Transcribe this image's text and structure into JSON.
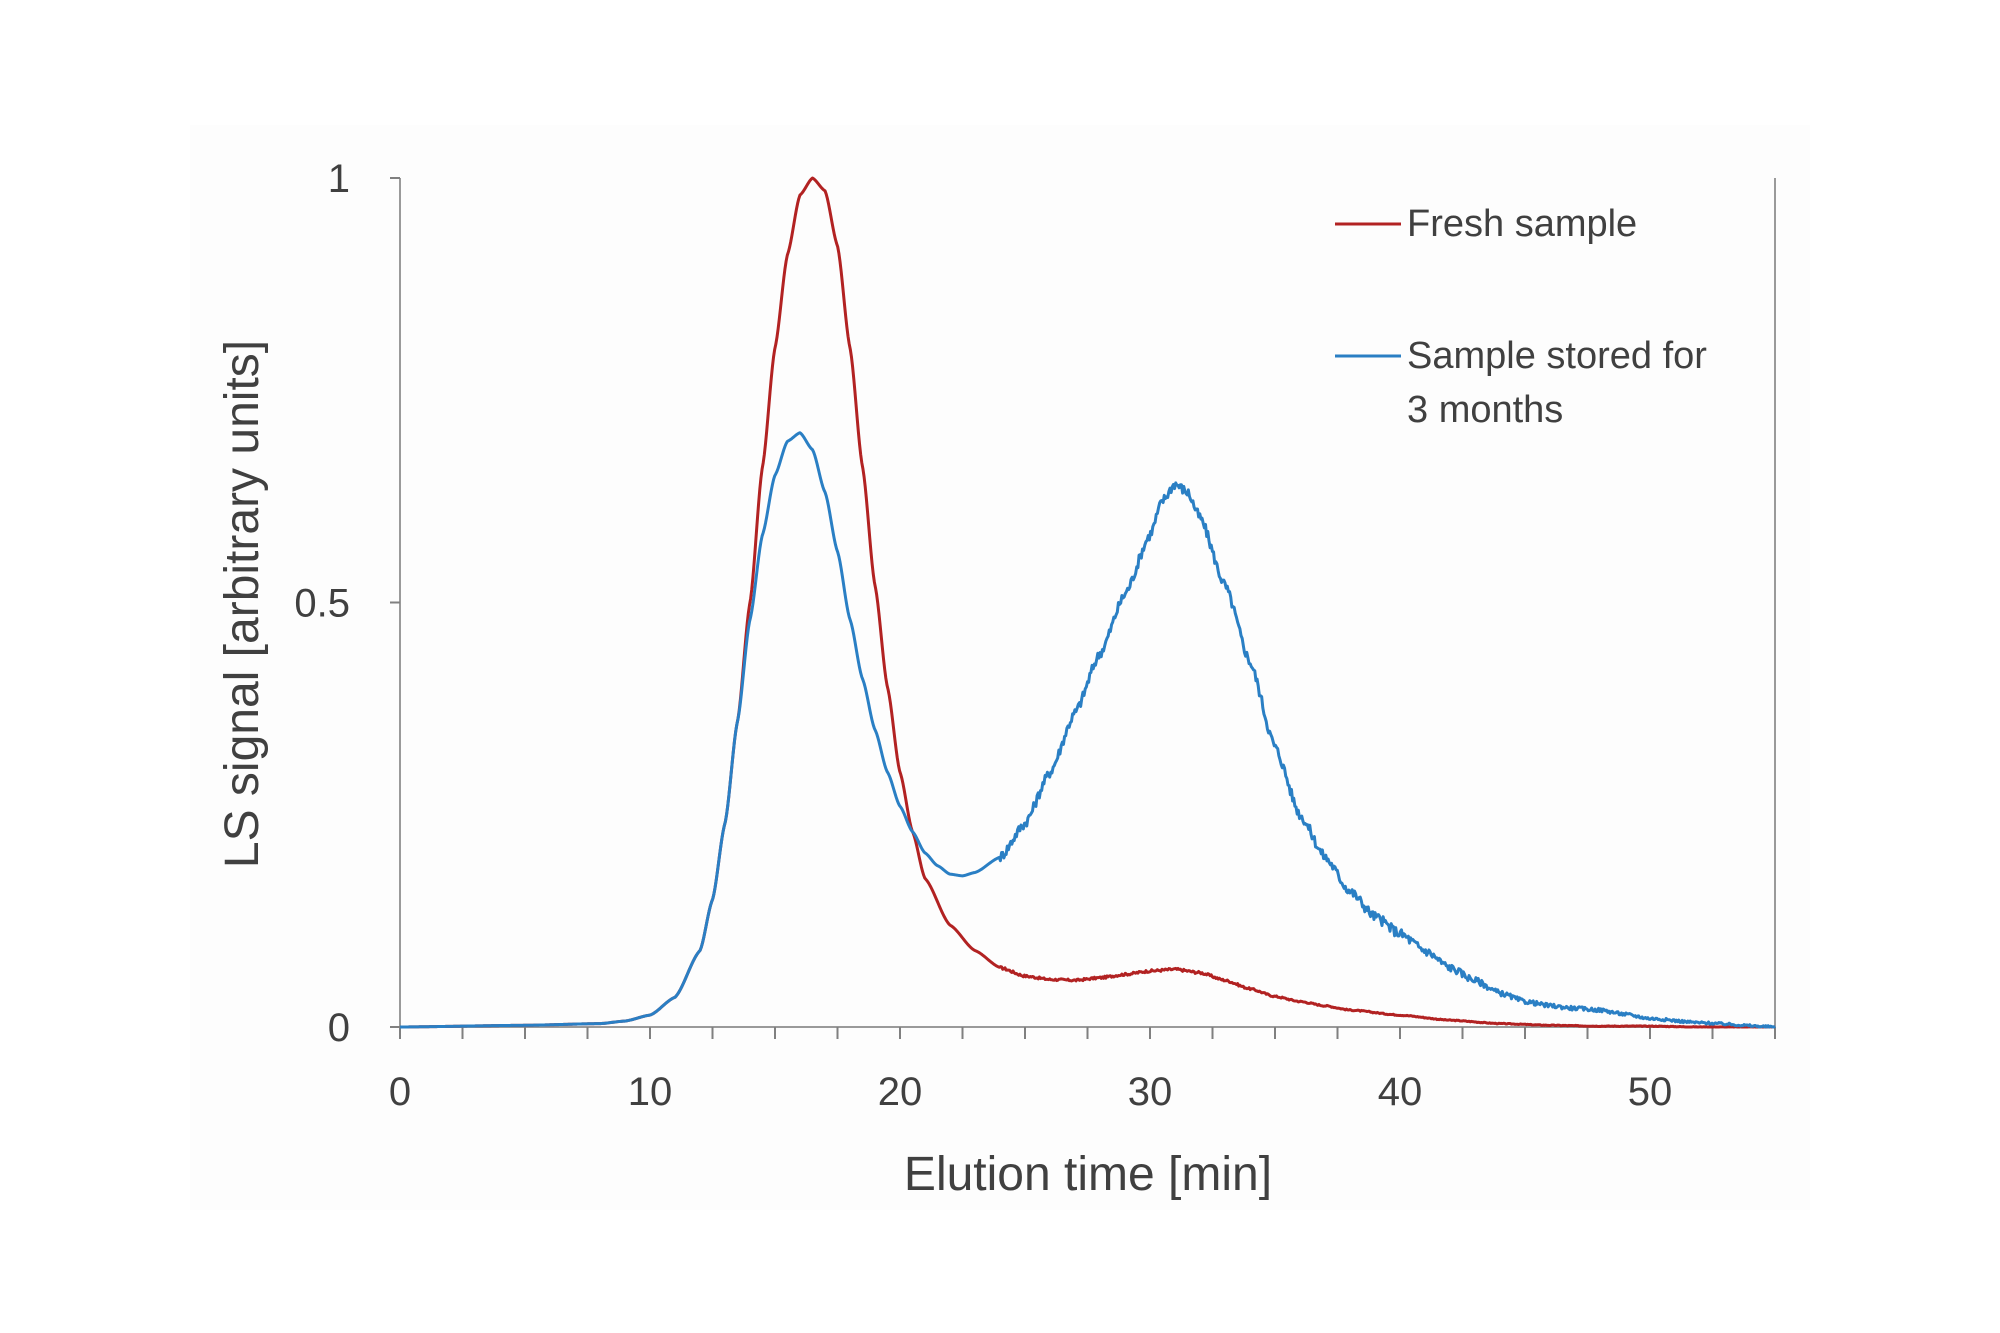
{
  "chart_data": {
    "type": "line",
    "title": "",
    "xlabel": "Elution time [min]",
    "ylabel": "LS signal [arbitrary units]",
    "xlim": [
      0,
      55
    ],
    "ylim": [
      0,
      1
    ],
    "xticks": [
      0,
      10,
      20,
      30,
      40,
      50
    ],
    "xtick_labels": [
      "0",
      "10",
      "20",
      "30",
      "40",
      "50"
    ],
    "yticks": [
      0,
      0.5,
      1
    ],
    "ytick_labels": [
      "0",
      "0.5",
      "1"
    ],
    "grid": false,
    "legend_position": "top-right",
    "legend_entries": [
      {
        "lines": [
          "Fresh sample"
        ],
        "color": "#b22222"
      },
      {
        "lines": [
          "Sample stored for",
          "3 months"
        ],
        "color": "#2a7fc4"
      }
    ],
    "series": [
      {
        "name": "Fresh sample",
        "color": "#b22222",
        "x": [
          0,
          5,
          8,
          9,
          10,
          11,
          12,
          12.5,
          13,
          13.5,
          14,
          14.5,
          15,
          15.5,
          16,
          16.5,
          17,
          17.5,
          18,
          18.5,
          19,
          19.5,
          20,
          20.5,
          21,
          22,
          23,
          24,
          25,
          26,
          27,
          28,
          29,
          30,
          31,
          32,
          33,
          34,
          35,
          36,
          37,
          38,
          40,
          42,
          44,
          46,
          48,
          50,
          52,
          55
        ],
        "y": [
          0,
          0.002,
          0.004,
          0.007,
          0.014,
          0.035,
          0.09,
          0.15,
          0.24,
          0.36,
          0.5,
          0.66,
          0.8,
          0.91,
          0.98,
          1.0,
          0.985,
          0.92,
          0.8,
          0.66,
          0.52,
          0.4,
          0.3,
          0.23,
          0.175,
          0.12,
          0.09,
          0.07,
          0.06,
          0.056,
          0.055,
          0.058,
          0.062,
          0.066,
          0.068,
          0.064,
          0.055,
          0.045,
          0.036,
          0.03,
          0.025,
          0.02,
          0.014,
          0.008,
          0.004,
          0.002,
          0.001,
          0.001,
          0.0,
          0.0
        ]
      },
      {
        "name": "Sample stored for 3 months",
        "color": "#2a7fc4",
        "x": [
          0,
          5,
          8,
          9,
          10,
          11,
          12,
          12.5,
          13,
          13.5,
          14,
          14.5,
          15,
          15.5,
          16,
          16.5,
          17,
          17.5,
          18,
          18.5,
          19,
          19.5,
          20,
          20.5,
          21,
          21.5,
          22,
          22.5,
          23,
          24,
          25,
          26,
          27,
          28,
          29,
          30,
          30.5,
          31,
          31.5,
          32,
          33,
          34,
          35,
          36,
          37,
          38,
          39,
          40,
          41,
          42,
          43,
          44,
          45,
          46,
          47,
          48,
          49,
          50,
          52,
          55
        ],
        "y": [
          0,
          0.002,
          0.004,
          0.007,
          0.014,
          0.035,
          0.09,
          0.15,
          0.24,
          0.36,
          0.48,
          0.58,
          0.65,
          0.69,
          0.7,
          0.68,
          0.63,
          0.56,
          0.48,
          0.41,
          0.35,
          0.3,
          0.26,
          0.23,
          0.205,
          0.19,
          0.18,
          0.178,
          0.182,
          0.2,
          0.24,
          0.3,
          0.37,
          0.44,
          0.51,
          0.58,
          0.62,
          0.64,
          0.63,
          0.6,
          0.52,
          0.43,
          0.33,
          0.25,
          0.2,
          0.16,
          0.13,
          0.11,
          0.09,
          0.07,
          0.055,
          0.04,
          0.03,
          0.025,
          0.022,
          0.02,
          0.015,
          0.01,
          0.005,
          0.0
        ]
      }
    ]
  }
}
